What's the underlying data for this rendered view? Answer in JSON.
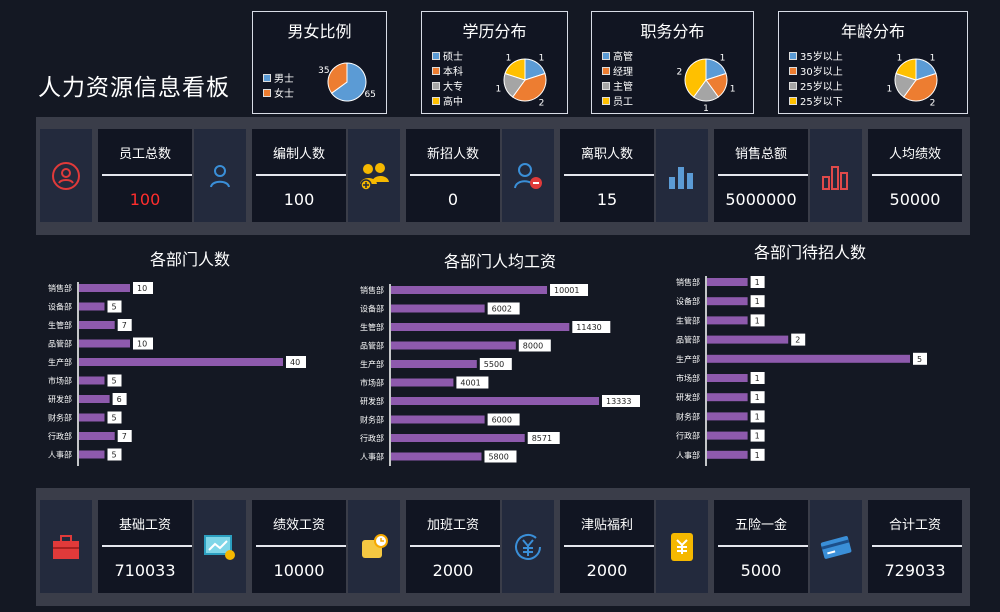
{
  "page": {
    "title": "人力资源信息看板"
  },
  "pies": [
    {
      "id": "gender",
      "title": "男女比例",
      "legend": [
        "男士",
        "女士"
      ],
      "values": [
        65,
        35
      ],
      "labels": [
        "65",
        "35"
      ],
      "colors": [
        "#5b9bd5",
        "#ed7d31"
      ]
    },
    {
      "id": "edu",
      "title": "学历分布",
      "legend": [
        "硕士",
        "本科",
        "大专",
        "高中"
      ],
      "values": [
        1,
        2,
        1,
        1
      ],
      "labels": [
        "1",
        "2",
        "1",
        "1"
      ],
      "colors": [
        "#5b9bd5",
        "#ed7d31",
        "#a5a5a5",
        "#ffc000"
      ]
    },
    {
      "id": "position",
      "title": "职务分布",
      "legend": [
        "高管",
        "经理",
        "主管",
        "员工"
      ],
      "values": [
        1,
        1,
        1,
        2
      ],
      "labels": [
        "1",
        "1",
        "1",
        "2"
      ],
      "colors": [
        "#5b9bd5",
        "#ed7d31",
        "#a5a5a5",
        "#ffc000"
      ]
    },
    {
      "id": "age",
      "title": "年龄分布",
      "legend": [
        "35岁以上",
        "30岁以上",
        "25岁以上",
        "25岁以下"
      ],
      "values": [
        1,
        2,
        1,
        1
      ],
      "labels": [
        "1",
        "2",
        "1",
        "1"
      ],
      "colors": [
        "#5b9bd5",
        "#ed7d31",
        "#a5a5a5",
        "#ffc000"
      ]
    }
  ],
  "kpi_top": [
    {
      "label": "员工总数",
      "value": "100",
      "icon": "person-circle-icon",
      "color": "#ff2d2d"
    },
    {
      "label": "编制人数",
      "value": "100",
      "icon": "person-outline-icon",
      "color": "#ffffff"
    },
    {
      "label": "新招人数",
      "value": "0",
      "icon": "group-add-icon",
      "color": "#ffffff"
    },
    {
      "label": "离职人数",
      "value": "15",
      "icon": "person-remove-icon",
      "color": "#ffffff"
    },
    {
      "label": "销售总额",
      "value": "5000000",
      "icon": "bar-chart-icon",
      "color": "#ffffff"
    },
    {
      "label": "人均绩效",
      "value": "50000",
      "icon": "bar-chart-red-icon",
      "color": "#ffffff"
    }
  ],
  "kpi_bottom": [
    {
      "label": "基础工资",
      "value": "710033",
      "icon": "briefcase-icon",
      "color": "#ffffff"
    },
    {
      "label": "绩效工资",
      "value": "10000",
      "icon": "monitor-coin-icon",
      "color": "#ffffff"
    },
    {
      "label": "加班工资",
      "value": "2000",
      "icon": "clock-money-icon",
      "color": "#ffffff"
    },
    {
      "label": "津贴福利",
      "value": "2000",
      "icon": "yen-circle-icon",
      "color": "#ffffff"
    },
    {
      "label": "五险一金",
      "value": "5000",
      "icon": "yen-scroll-icon",
      "color": "#ffffff"
    },
    {
      "label": "合计工资",
      "value": "729033",
      "icon": "credit-card-icon",
      "color": "#ffffff"
    }
  ],
  "chart_data": [
    {
      "type": "bar",
      "title": "各部门人数",
      "categories": [
        "销售部",
        "设备部",
        "生管部",
        "品管部",
        "生产部",
        "市场部",
        "研发部",
        "财务部",
        "行政部",
        "人事部"
      ],
      "values": [
        10,
        5,
        7,
        10,
        40,
        5,
        6,
        5,
        7,
        5
      ],
      "xlim": [
        0,
        40
      ]
    },
    {
      "type": "bar",
      "title": "各部门人均工资",
      "categories": [
        "销售部",
        "设备部",
        "生管部",
        "品管部",
        "生产部",
        "市场部",
        "研发部",
        "财务部",
        "行政部",
        "人事部"
      ],
      "values": [
        10001,
        6002,
        11430,
        8000,
        5500,
        4001,
        13333,
        6000,
        8571,
        5800
      ],
      "xlim": [
        0,
        13333
      ]
    },
    {
      "type": "bar",
      "title": "各部门待招人数",
      "categories": [
        "销售部",
        "设备部",
        "生管部",
        "品管部",
        "生产部",
        "市场部",
        "研发部",
        "财务部",
        "行政部",
        "人事部"
      ],
      "values": [
        1,
        1,
        1,
        2,
        5,
        1,
        1,
        1,
        1,
        1
      ],
      "xlim": [
        0,
        5
      ]
    }
  ]
}
